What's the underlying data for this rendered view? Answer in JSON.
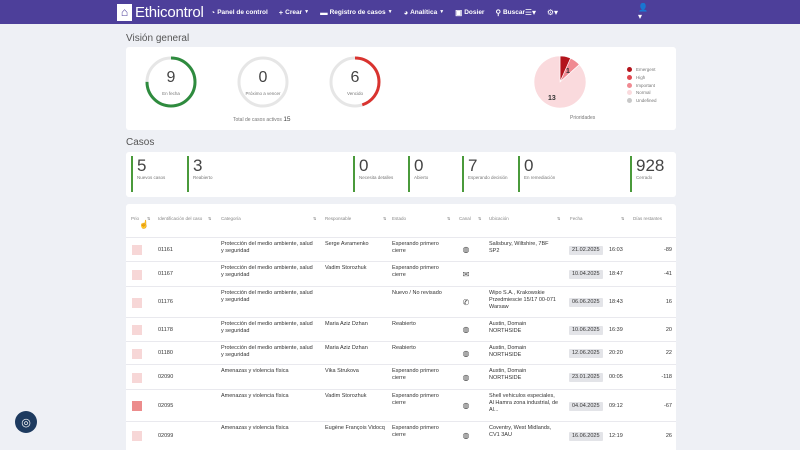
{
  "nav": {
    "brand": "Ethicontrol",
    "items": [
      {
        "label": "Panel de control",
        "icon": "dashboard-icon",
        "glyph": "◔",
        "caret": false
      },
      {
        "label": "Crear",
        "icon": "plus-icon",
        "glyph": "+",
        "caret": true
      },
      {
        "label": "Registro de casos",
        "icon": "folder-icon",
        "glyph": "▬",
        "caret": true
      },
      {
        "label": "Analítica",
        "icon": "pie-chart-icon",
        "glyph": "◕",
        "caret": true
      },
      {
        "label": "Dosier",
        "icon": "dossier-icon",
        "glyph": "▣",
        "caret": false
      },
      {
        "label": "Buscar",
        "icon": "search-icon",
        "glyph": "⚲",
        "caret": false
      }
    ]
  },
  "overview": {
    "title": "Visión general",
    "gauges": [
      {
        "value": "9",
        "label": "En fecha",
        "color": "#2e8b3e",
        "fraction": 0.75
      },
      {
        "value": "0",
        "label": "Próximo a vencer",
        "color": "#e6e6e6",
        "fraction": 0
      },
      {
        "value": "6",
        "label": "Vencido",
        "color": "#d9332f",
        "fraction": 0.45
      }
    ],
    "total_label": "Total de casos activos",
    "total_value": "15",
    "pie_caption": "Prioridades",
    "pie_labels": {
      "small": "1",
      "big": "13"
    },
    "legend": [
      {
        "label": "Emergent",
        "color": "#b3141c"
      },
      {
        "label": "High",
        "color": "#e0474f"
      },
      {
        "label": "Important",
        "color": "#f08a92"
      },
      {
        "label": "Normal",
        "color": "#fadadd"
      },
      {
        "label": "Undefined",
        "color": "#c8c8c8"
      }
    ]
  },
  "chart_data": {
    "type": "pie",
    "title": "Prioridades",
    "categories": [
      "Emergent",
      "High",
      "Important",
      "Normal",
      "Undefined"
    ],
    "values": [
      1,
      0,
      1,
      13,
      0
    ]
  },
  "cases": {
    "title": "Casos",
    "stats": [
      {
        "value": "5",
        "label": "Nuevos casos"
      },
      {
        "value": "3",
        "label": "Reabierto"
      },
      {
        "value": "0",
        "label": "Necesita detalles"
      },
      {
        "value": "0",
        "label": "Abierto"
      },
      {
        "value": "7",
        "label": "Esperando decisión"
      },
      {
        "value": "0",
        "label": "En remediación"
      },
      {
        "value": "928",
        "label": "Cerrado"
      }
    ]
  },
  "table": {
    "columns": {
      "prio": "Prio",
      "id": "Identificación del caso",
      "category": "Categoría",
      "responsible": "Responsable",
      "status": "Estado",
      "channel": "Canal",
      "location": "Ubicación",
      "date": "Fecha",
      "days": "Días restantes"
    },
    "rows": [
      {
        "id": "01161",
        "category": "Protección del medio ambiente, salud y seguridad",
        "responsible": "Serge Avramenko",
        "status": "Esperando primero cierre",
        "channel": "globe-icon",
        "channel_glyph": "◍",
        "location": "Salisbury, Wiltshire, 7BF SP2",
        "date": "21.02.2025",
        "time": "16:03",
        "days": "-89",
        "flag": "light"
      },
      {
        "id": "01167",
        "category": "Protección del medio ambiente, salud y seguridad",
        "responsible": "Vadim Storozhuk",
        "status": "Esperando primero cierre",
        "channel": "mail-icon",
        "channel_glyph": "✉",
        "location": "",
        "date": "10.04.2025",
        "time": "18:47",
        "days": "-41",
        "flag": "light"
      },
      {
        "id": "01176",
        "category": "Protección del medio ambiente, salud y seguridad",
        "responsible": "",
        "status": "Nuevo / No revisado",
        "channel": "phone-icon",
        "channel_glyph": "✆",
        "location": "Wipo S.A., Krakowskie Przedmiescie 15/17 00-071 Warsaw",
        "date": "06.06.2025",
        "time": "18:43",
        "days": "16",
        "flag": "light"
      },
      {
        "id": "01178",
        "category": "Protección del medio ambiente, salud y seguridad",
        "responsible": "Maria Aziz Dzhan",
        "status": "Reabierto",
        "channel": "globe-icon",
        "channel_glyph": "◍",
        "location": "Austin, Domain NORTHSIDE",
        "date": "10.06.2025",
        "time": "16:39",
        "days": "20",
        "flag": "light"
      },
      {
        "id": "01180",
        "category": "Protección del medio ambiente, salud y seguridad",
        "responsible": "Maria Aziz Dzhan",
        "status": "Reabierto",
        "channel": "globe-icon",
        "channel_glyph": "◍",
        "location": "Austin, Domain NORTHSIDE",
        "date": "12.06.2025",
        "time": "20:20",
        "days": "22",
        "flag": "light"
      },
      {
        "id": "02090",
        "category": "Amenazas y violencia física",
        "responsible": "Vika Strukova",
        "status": "Esperando primero cierre",
        "channel": "globe-icon",
        "channel_glyph": "◍",
        "location": "Austin, Domain NORTHSIDE",
        "date": "23.01.2025",
        "time": "00:05",
        "days": "-118",
        "flag": "light"
      },
      {
        "id": "02095",
        "category": "Amenazas y violencia física",
        "responsible": "Vadim Storozhuk",
        "status": "Esperando primero cierre",
        "channel": "globe-icon",
        "channel_glyph": "◍",
        "location": "Shell vehiculos especiales, Al Hamra zona industrial, de Al...",
        "date": "04.04.2025",
        "time": "09:12",
        "days": "-67",
        "flag": "red"
      },
      {
        "id": "02099",
        "category": "Amenazas y violencia física",
        "responsible": "Eugène François Vidocq",
        "status": "Esperando primero cierre",
        "channel": "globe-icon",
        "channel_glyph": "◍",
        "location": "Coventry, West Midlands, CV1 3AU",
        "date": "16.06.2025",
        "time": "12:19",
        "days": "26",
        "flag": "light"
      }
    ]
  }
}
